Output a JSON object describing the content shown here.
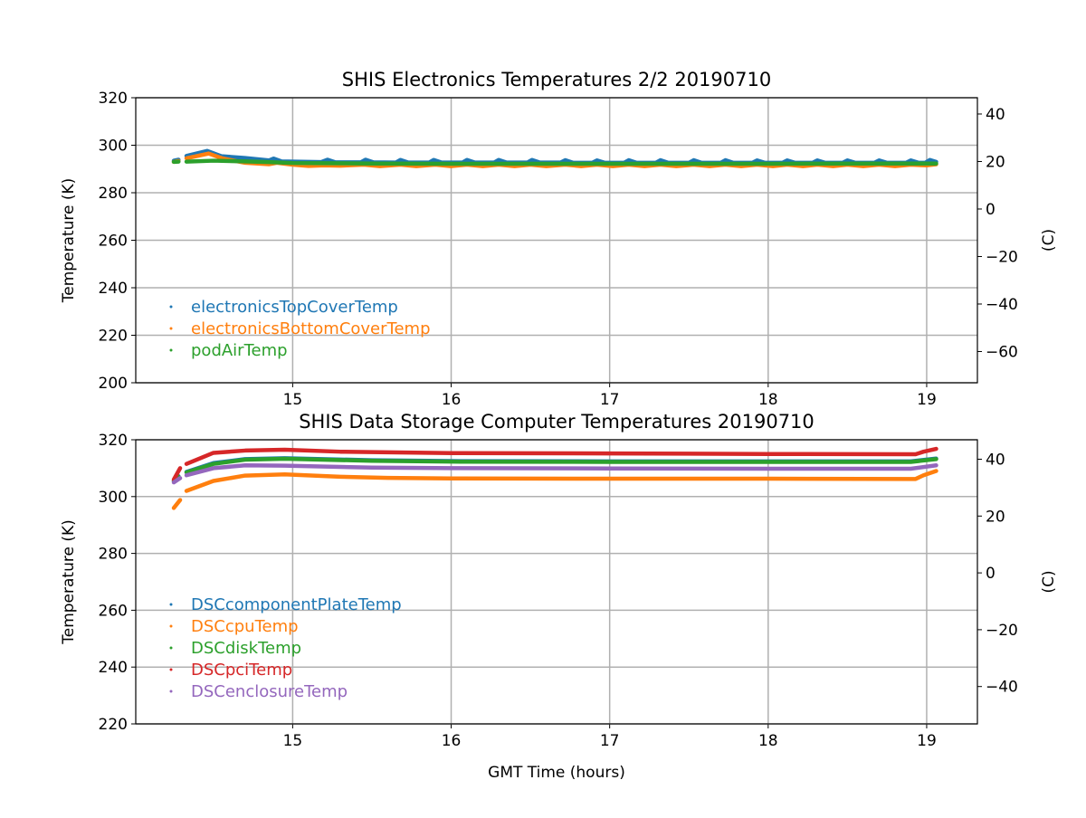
{
  "chart_data": [
    {
      "type": "scatter",
      "title": "SHIS Electronics Temperatures 2/2 20190710",
      "xlabel": "",
      "ylabel": "Temperature (K)",
      "ylabel_right": "(C)",
      "xlim": [
        14.01,
        19.32
      ],
      "ylim": [
        200,
        320
      ],
      "xticks": [
        15,
        16,
        17,
        18,
        19
      ],
      "yticks": [
        200,
        220,
        240,
        260,
        280,
        300,
        320
      ],
      "yticks_right_c": [
        40,
        20,
        0,
        -20,
        -40,
        -60
      ],
      "grid": true,
      "legend_placement": "lower-left",
      "series": [
        {
          "name": "electronicsTopCoverTemp",
          "color": "#1f77b4",
          "segments": [
            [
              [
                14.25,
                293.5
              ],
              [
                14.28,
                293.9
              ]
            ],
            [
              [
                14.33,
                295.5
              ],
              [
                14.46,
                297.6
              ],
              [
                14.55,
                295.4
              ],
              [
                14.7,
                294.6
              ],
              [
                14.85,
                293.6
              ],
              [
                14.88,
                294.4
              ],
              [
                14.93,
                293.2
              ],
              [
                15.18,
                292.9
              ],
              [
                15.22,
                293.9
              ],
              [
                15.27,
                292.8
              ],
              [
                15.43,
                292.8
              ],
              [
                15.46,
                293.9
              ],
              [
                15.51,
                292.8
              ],
              [
                15.65,
                292.7
              ],
              [
                15.68,
                293.8
              ],
              [
                15.73,
                292.7
              ],
              [
                15.86,
                292.7
              ],
              [
                15.89,
                293.8
              ],
              [
                15.94,
                292.7
              ],
              [
                16.07,
                292.7
              ],
              [
                16.1,
                293.8
              ],
              [
                16.15,
                292.7
              ],
              [
                16.27,
                292.7
              ],
              [
                16.3,
                293.8
              ],
              [
                16.35,
                292.7
              ],
              [
                16.48,
                292.7
              ],
              [
                16.51,
                293.8
              ],
              [
                16.56,
                292.7
              ],
              [
                16.69,
                292.7
              ],
              [
                16.72,
                293.7
              ],
              [
                16.77,
                292.6
              ],
              [
                16.89,
                292.6
              ],
              [
                16.92,
                293.6
              ],
              [
                16.97,
                292.6
              ],
              [
                17.09,
                292.6
              ],
              [
                17.12,
                293.7
              ],
              [
                17.17,
                292.6
              ],
              [
                17.29,
                292.6
              ],
              [
                17.32,
                293.7
              ],
              [
                17.37,
                292.6
              ],
              [
                17.5,
                292.6
              ],
              [
                17.53,
                293.7
              ],
              [
                17.58,
                292.6
              ],
              [
                17.7,
                292.6
              ],
              [
                17.73,
                293.7
              ],
              [
                17.78,
                292.6
              ],
              [
                17.9,
                292.6
              ],
              [
                17.93,
                293.6
              ],
              [
                17.98,
                292.6
              ],
              [
                18.09,
                292.6
              ],
              [
                18.12,
                293.6
              ],
              [
                18.17,
                292.6
              ],
              [
                18.28,
                292.6
              ],
              [
                18.31,
                293.6
              ],
              [
                18.36,
                292.6
              ],
              [
                18.47,
                292.6
              ],
              [
                18.5,
                293.6
              ],
              [
                18.55,
                292.6
              ],
              [
                18.67,
                292.6
              ],
              [
                18.7,
                293.6
              ],
              [
                18.75,
                292.6
              ],
              [
                18.87,
                292.6
              ],
              [
                18.9,
                293.6
              ],
              [
                18.95,
                292.6
              ],
              [
                18.99,
                292.6
              ],
              [
                19.02,
                293.8
              ],
              [
                19.06,
                293.0
              ]
            ]
          ]
        },
        {
          "name": "electronicsBottomCoverTemp",
          "color": "#ff7f0e",
          "segments": [
            [
              [
                14.25,
                293.0
              ],
              [
                14.28,
                293.4
              ]
            ],
            [
              [
                14.33,
                294.5
              ],
              [
                14.47,
                296.5
              ],
              [
                14.56,
                294.4
              ],
              [
                14.7,
                292.6
              ],
              [
                14.85,
                292.0
              ],
              [
                14.9,
                292.6
              ],
              [
                15.0,
                291.8
              ],
              [
                15.1,
                291.3
              ],
              [
                15.2,
                291.5
              ],
              [
                15.3,
                291.4
              ],
              [
                15.45,
                291.8
              ],
              [
                15.55,
                291.2
              ],
              [
                15.68,
                291.8
              ],
              [
                15.78,
                291.2
              ],
              [
                15.9,
                291.8
              ],
              [
                16.0,
                291.2
              ],
              [
                16.1,
                291.8
              ],
              [
                16.2,
                291.2
              ],
              [
                16.3,
                291.8
              ],
              [
                16.4,
                291.2
              ],
              [
                16.5,
                291.8
              ],
              [
                16.6,
                291.2
              ],
              [
                16.72,
                291.8
              ],
              [
                16.82,
                291.2
              ],
              [
                16.92,
                291.8
              ],
              [
                17.02,
                291.2
              ],
              [
                17.12,
                291.8
              ],
              [
                17.22,
                291.2
              ],
              [
                17.32,
                291.8
              ],
              [
                17.42,
                291.2
              ],
              [
                17.53,
                291.8
              ],
              [
                17.63,
                291.2
              ],
              [
                17.73,
                291.8
              ],
              [
                17.83,
                291.2
              ],
              [
                17.93,
                291.8
              ],
              [
                18.03,
                291.2
              ],
              [
                18.12,
                291.8
              ],
              [
                18.22,
                291.2
              ],
              [
                18.31,
                291.8
              ],
              [
                18.41,
                291.2
              ],
              [
                18.5,
                291.8
              ],
              [
                18.6,
                291.2
              ],
              [
                18.7,
                291.8
              ],
              [
                18.8,
                291.2
              ],
              [
                18.9,
                291.8
              ],
              [
                19.0,
                291.5
              ],
              [
                19.06,
                292.0
              ]
            ]
          ]
        },
        {
          "name": "podAirTemp",
          "color": "#2ca02c",
          "segments": [
            [
              [
                14.25,
                293.0
              ],
              [
                14.28,
                293.1
              ]
            ],
            [
              [
                14.33,
                293.1
              ],
              [
                14.5,
                293.5
              ],
              [
                14.7,
                293.2
              ],
              [
                14.85,
                292.9
              ],
              [
                15.0,
                292.5
              ],
              [
                15.5,
                292.3
              ],
              [
                16.0,
                292.2
              ],
              [
                17.0,
                292.2
              ],
              [
                18.0,
                292.2
              ],
              [
                19.06,
                292.3
              ]
            ]
          ]
        }
      ]
    },
    {
      "type": "scatter",
      "title": "SHIS Data Storage Computer Temperatures 20190710",
      "xlabel": "GMT Time (hours)",
      "ylabel": "Temperature (K)",
      "ylabel_right": "(C)",
      "xlim": [
        14.01,
        19.32
      ],
      "ylim": [
        220,
        320
      ],
      "xticks": [
        15,
        16,
        17,
        18,
        19
      ],
      "yticks": [
        220,
        240,
        260,
        280,
        300,
        320
      ],
      "yticks_right_c": [
        40,
        20,
        0,
        -20,
        -40
      ],
      "grid": true,
      "legend_placement": "lower-left",
      "series": [
        {
          "name": "DSCcomponentPlateTemp",
          "color": "#1f77b4",
          "segments": [
            [
              [
                14.25,
                305.5
              ],
              [
                14.28,
                307.2
              ]
            ],
            [
              [
                14.33,
                308.7
              ],
              [
                14.5,
                311.8
              ],
              [
                14.7,
                313.2
              ],
              [
                14.95,
                313.5
              ],
              [
                15.5,
                312.8
              ],
              [
                16.0,
                312.5
              ],
              [
                17.0,
                312.4
              ],
              [
                18.0,
                312.4
              ],
              [
                18.9,
                312.4
              ],
              [
                19.06,
                313.4
              ]
            ]
          ]
        },
        {
          "name": "DSCcpuTemp",
          "color": "#ff7f0e",
          "segments": [
            [
              [
                14.25,
                296.0
              ],
              [
                14.29,
                298.8
              ]
            ],
            [
              [
                14.33,
                302.0
              ],
              [
                14.5,
                305.5
              ],
              [
                14.7,
                307.4
              ],
              [
                14.95,
                307.8
              ],
              [
                15.3,
                307.0
              ],
              [
                15.6,
                306.6
              ],
              [
                16.0,
                306.4
              ],
              [
                17.0,
                306.3
              ],
              [
                18.0,
                306.3
              ],
              [
                18.93,
                306.2
              ],
              [
                18.98,
                307.5
              ],
              [
                19.06,
                309.0
              ]
            ]
          ]
        },
        {
          "name": "DSCdiskTemp",
          "color": "#2ca02c",
          "segments": [
            [
              [
                14.25,
                305.5
              ],
              [
                14.28,
                307.0
              ]
            ],
            [
              [
                14.33,
                308.5
              ],
              [
                14.5,
                311.5
              ],
              [
                14.7,
                313.0
              ],
              [
                14.95,
                313.3
              ],
              [
                15.5,
                312.6
              ],
              [
                16.0,
                312.3
              ],
              [
                17.0,
                312.2
              ],
              [
                18.0,
                312.2
              ],
              [
                18.9,
                312.2
              ],
              [
                19.06,
                313.2
              ]
            ]
          ]
        },
        {
          "name": "DSCpciTemp",
          "color": "#d62728",
          "segments": [
            [
              [
                14.25,
                306.0
              ],
              [
                14.29,
                310.0
              ]
            ],
            [
              [
                14.33,
                311.5
              ],
              [
                14.5,
                315.4
              ],
              [
                14.7,
                316.2
              ],
              [
                14.95,
                316.5
              ],
              [
                15.3,
                315.8
              ],
              [
                16.0,
                315.3
              ],
              [
                17.0,
                315.2
              ],
              [
                18.0,
                315.0
              ],
              [
                18.93,
                314.9
              ],
              [
                18.98,
                315.8
              ],
              [
                19.06,
                316.8
              ]
            ]
          ]
        },
        {
          "name": "DSCenclosureTemp",
          "color": "#9467bd",
          "segments": [
            [
              [
                14.25,
                305.0
              ],
              [
                14.29,
                306.5
              ]
            ],
            [
              [
                14.33,
                307.5
              ],
              [
                14.5,
                310.0
              ],
              [
                14.7,
                311.0
              ],
              [
                14.95,
                310.9
              ],
              [
                15.5,
                310.2
              ],
              [
                16.0,
                310.0
              ],
              [
                17.0,
                309.9
              ],
              [
                18.0,
                309.8
              ],
              [
                18.9,
                309.8
              ],
              [
                19.06,
                311.0
              ]
            ]
          ]
        }
      ]
    }
  ]
}
